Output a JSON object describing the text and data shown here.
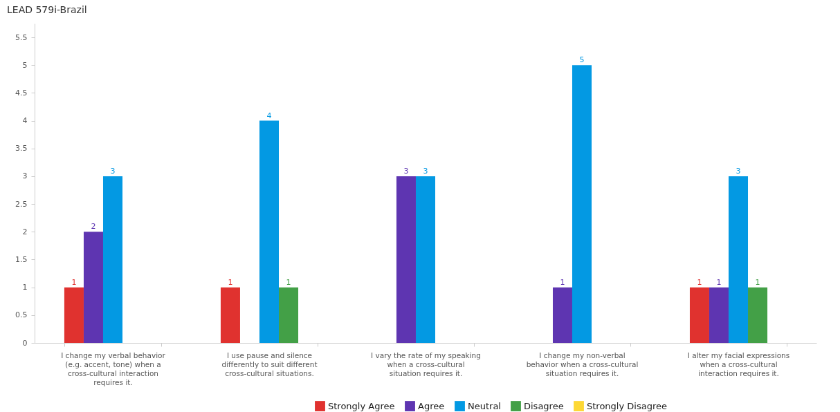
{
  "chart_data": {
    "type": "bar",
    "title": "LEAD 579i-Brazil",
    "categories": [
      "I change my verbal behavior (e.g. accent, tone) when a cross-cultural interaction requires it.",
      "I use pause and silence differently to suit different cross-cultural situations.",
      "I vary the rate of my speaking when a cross-cultural situation requires it.",
      "I change my non-verbal behavior when a cross-cultural situation requires it.",
      "I alter my facial expressions when a cross-cultural interaction requires it."
    ],
    "series": [
      {
        "name": "Strongly Agree",
        "color": "#e0322f",
        "values": [
          1,
          1,
          null,
          null,
          1
        ]
      },
      {
        "name": "Agree",
        "color": "#5e35b1",
        "values": [
          2,
          null,
          3,
          1,
          1
        ]
      },
      {
        "name": "Neutral",
        "color": "#0399e3",
        "values": [
          3,
          4,
          3,
          5,
          3
        ]
      },
      {
        "name": "Disagree",
        "color": "#43a047",
        "values": [
          null,
          1,
          null,
          null,
          1
        ]
      },
      {
        "name": "Strongly Disagree",
        "color": "#fdd835",
        "values": [
          null,
          null,
          null,
          null,
          null
        ]
      }
    ],
    "ylim": [
      0,
      5.75
    ],
    "yticks": [
      0,
      0.5,
      1,
      1.5,
      2,
      2.5,
      3,
      3.5,
      4,
      4.5,
      5,
      5.5
    ],
    "grid": false,
    "legend": "bottom",
    "data_labels": true
  }
}
